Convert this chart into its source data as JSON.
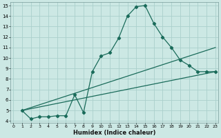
{
  "xlabel": "Humidex (Indice chaleur)",
  "bg_color": "#cce8e4",
  "grid_color": "#aad0cc",
  "line_color": "#1a6b5a",
  "xlim": [
    0,
    23
  ],
  "ylim": [
    4,
    15
  ],
  "xticks": [
    0,
    1,
    2,
    3,
    4,
    5,
    6,
    7,
    8,
    9,
    10,
    11,
    12,
    13,
    14,
    15,
    16,
    17,
    18,
    19,
    20,
    21,
    22,
    23
  ],
  "yticks": [
    4,
    5,
    6,
    7,
    8,
    9,
    10,
    11,
    12,
    13,
    14,
    15
  ],
  "curve1_x": [
    1,
    2,
    3,
    4,
    5,
    6,
    7,
    8,
    9,
    10,
    11,
    12,
    13,
    14,
    15,
    16,
    17,
    18,
    19,
    20,
    21,
    22,
    23
  ],
  "curve1_y": [
    5.0,
    4.2,
    4.4,
    4.4,
    4.5,
    4.5,
    6.5,
    4.8,
    8.7,
    10.2,
    10.5,
    11.9,
    14.0,
    14.9,
    15.0,
    13.3,
    12.0,
    11.0,
    9.8,
    9.3,
    8.7,
    8.7,
    8.7
  ],
  "curve2_x": [
    1,
    23
  ],
  "curve2_y": [
    5.0,
    8.7
  ],
  "curve3_x": [
    1,
    23
  ],
  "curve3_y": [
    5.0,
    11.0
  ]
}
